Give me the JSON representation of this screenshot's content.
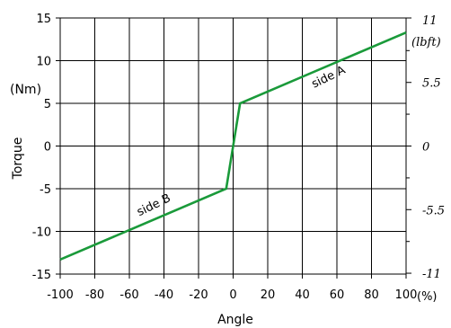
{
  "chart_data": {
    "type": "line",
    "xlabel": "Angle",
    "ylabel": "Torque",
    "ylabel_unit": "(Nm)",
    "x_unit": "(%)",
    "xlim": [
      -100,
      100
    ],
    "ylim": [
      -15,
      15
    ],
    "x_ticks": [
      -100,
      -80,
      -60,
      -40,
      -20,
      0,
      20,
      40,
      60,
      80,
      100
    ],
    "x_tick_labels": [
      "-100",
      "-80",
      "-60",
      "-40",
      "-20",
      "0",
      "20",
      "40",
      "60",
      "80",
      "100"
    ],
    "y_ticks": [
      -15,
      -10,
      -5,
      0,
      5,
      10,
      15
    ],
    "y_tick_labels": [
      "-15",
      "-10",
      "-5",
      "0",
      "5",
      "10",
      "15"
    ],
    "right_axis": {
      "unit": "(lbft)",
      "top_label": "11",
      "ticks": [
        {
          "y": 7.45,
          "label": "5.5"
        },
        {
          "y": 0,
          "label": "0"
        },
        {
          "y": -7.45,
          "label": "-5.5"
        },
        {
          "y": -14.9,
          "label": "-11"
        }
      ],
      "minor_ticks": [
        3.73,
        11.18,
        -3.73,
        -11.18
      ]
    },
    "grid": true,
    "series": [
      {
        "color": "#1a9a3a",
        "x": [
          -100,
          -4,
          4,
          100
        ],
        "y": [
          -13.3,
          -5,
          5,
          13.3
        ]
      }
    ],
    "annotations": [
      {
        "text": "side A",
        "x": 56,
        "y": 7.7,
        "angle": -26
      },
      {
        "text": "side B",
        "x": -45,
        "y": -7.3,
        "angle": -26
      }
    ]
  }
}
